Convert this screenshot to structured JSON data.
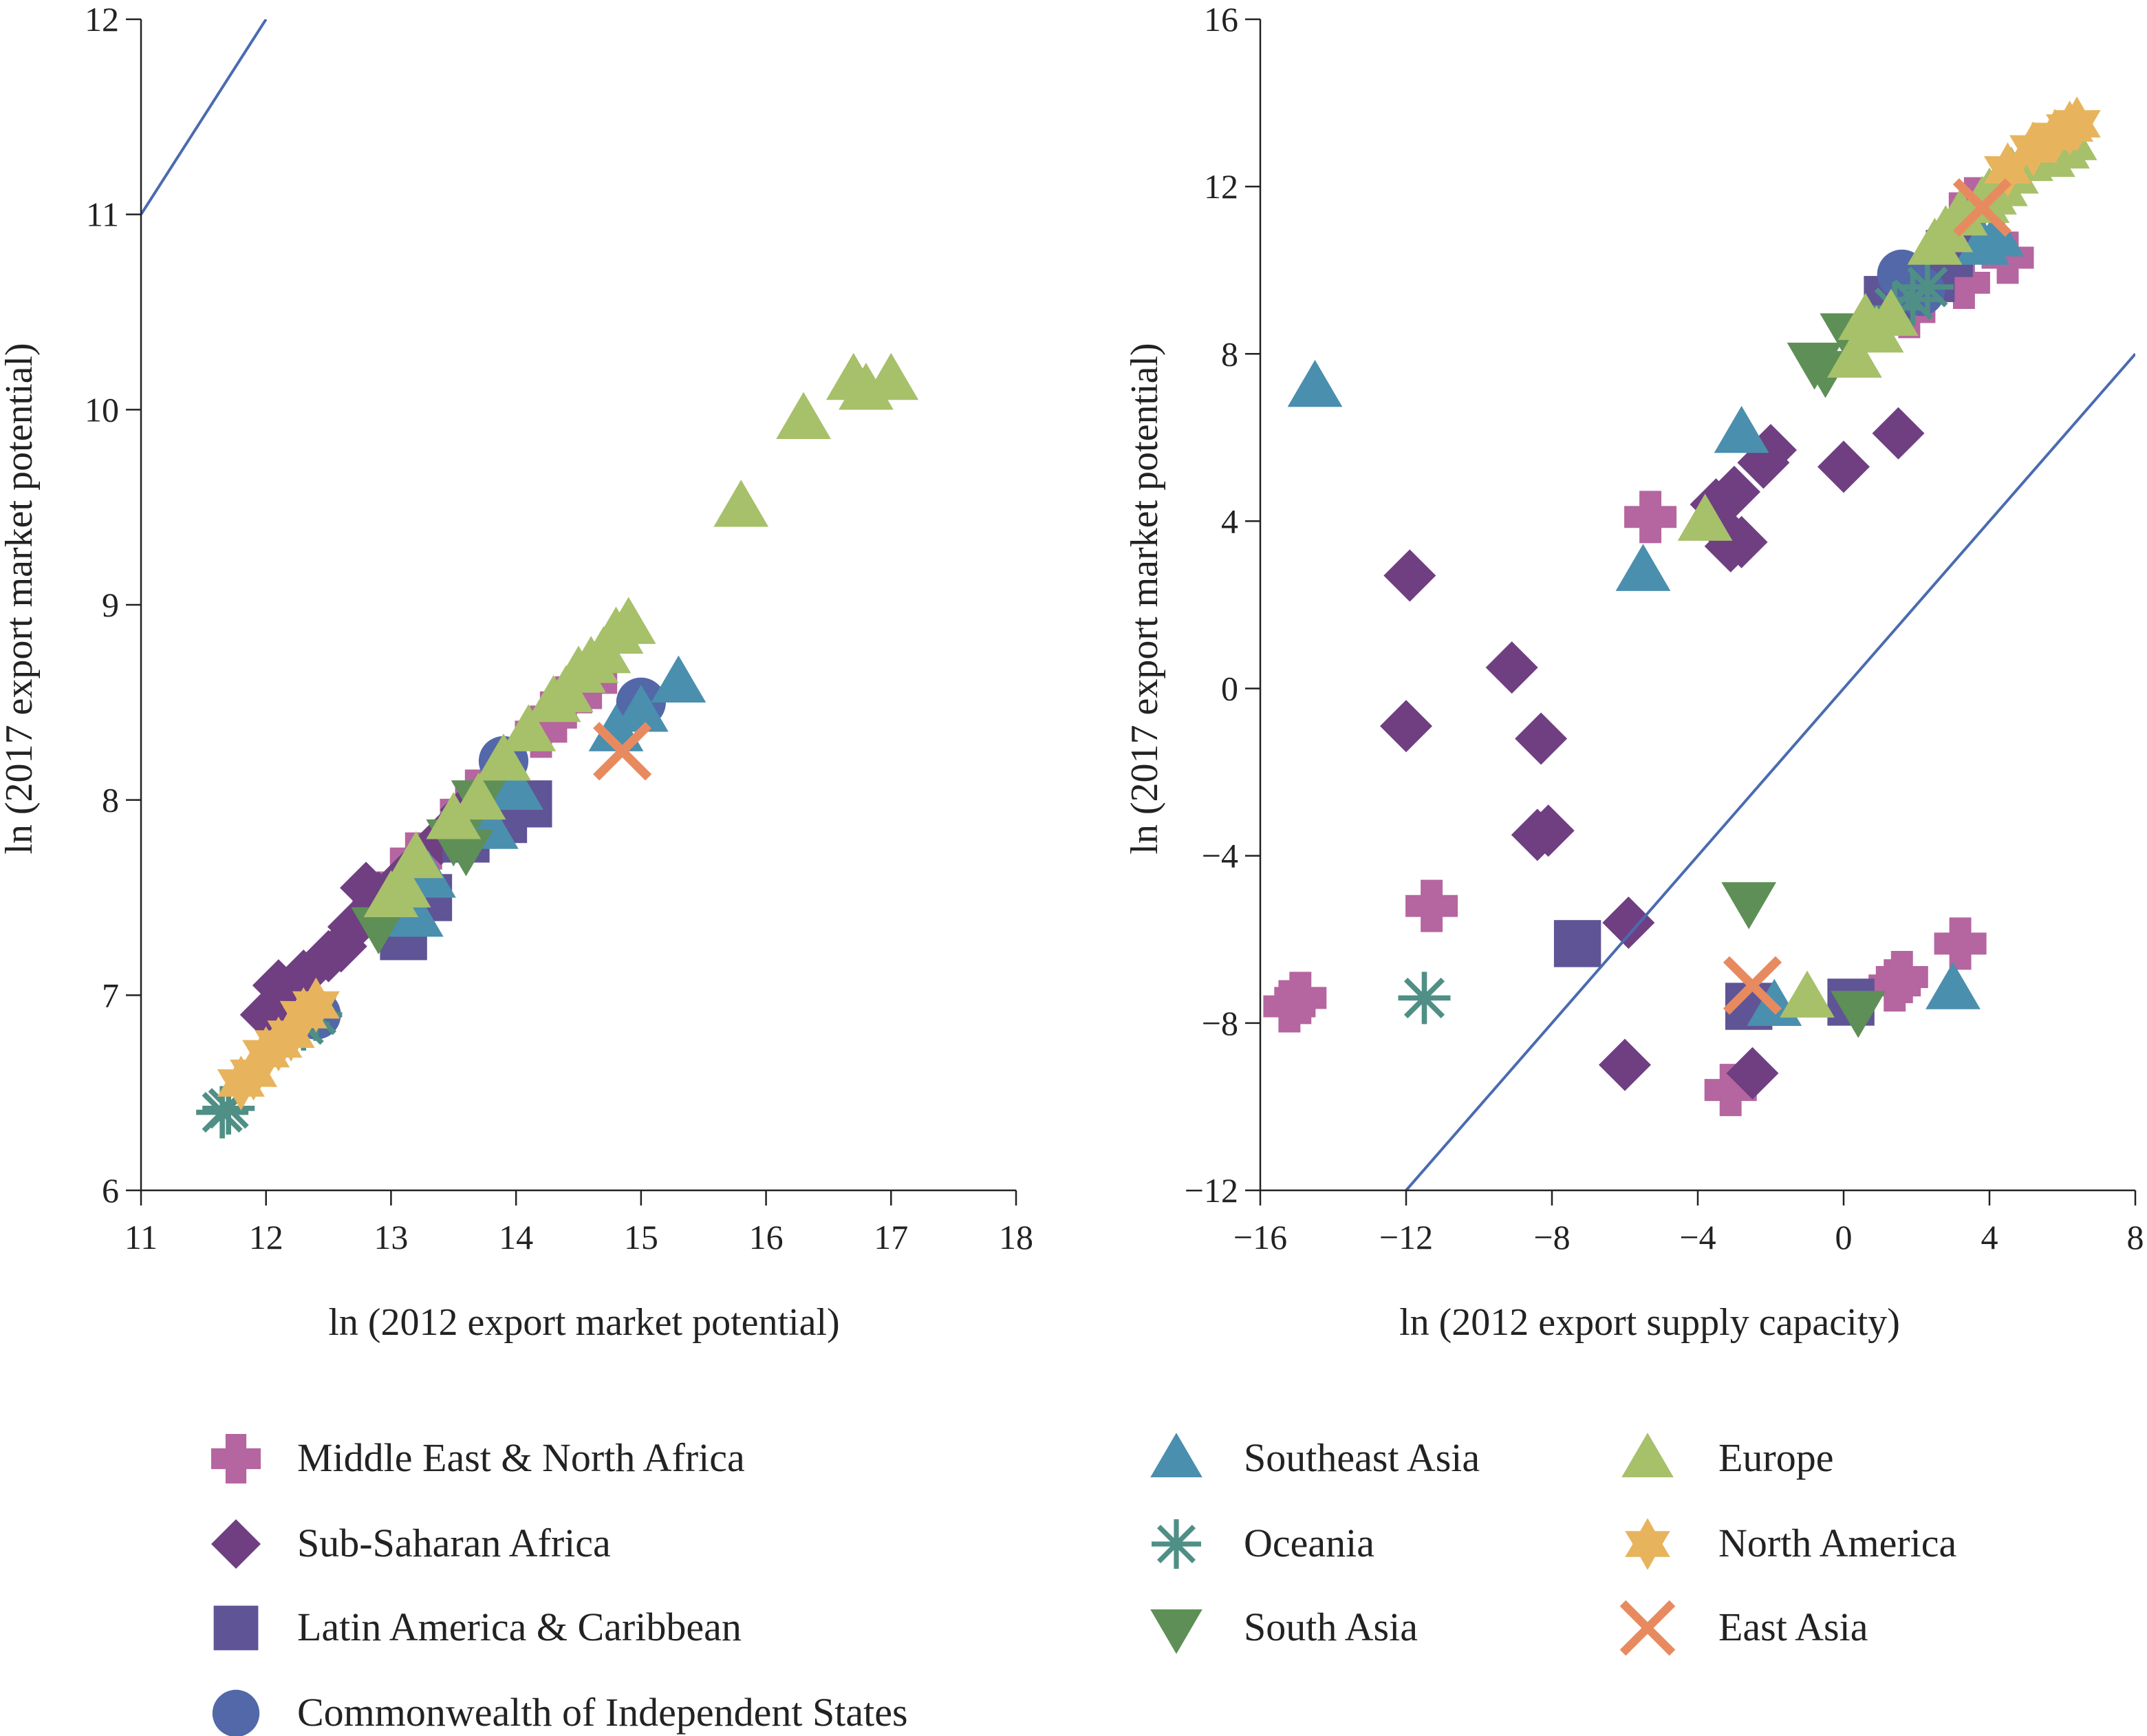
{
  "colors": {
    "mena": "#b5659f",
    "ssa": "#6f3f82",
    "lac": "#5f5496",
    "cis": "#5268a8",
    "sea": "#4a8fae",
    "oceania": "#4f8f86",
    "south_asia": "#5e8f57",
    "europe": "#a7c06a",
    "north_america": "#e7b45d",
    "east_asia": "#e88a60",
    "ref_line": "#4a6bb0",
    "axis": "#222222"
  },
  "legend": {
    "items": [
      {
        "key": "mena",
        "label": "Middle East & North Africa",
        "marker": "plus"
      },
      {
        "key": "ssa",
        "label": "Sub-Saharan Africa",
        "marker": "diamond"
      },
      {
        "key": "lac",
        "label": "Latin America & Caribbean",
        "marker": "square"
      },
      {
        "key": "cis",
        "label": "Commonwealth of Independent States",
        "marker": "circle"
      },
      {
        "key": "sea",
        "label": "Southeast Asia",
        "marker": "triangle-up"
      },
      {
        "key": "oceania",
        "label": "Oceania",
        "marker": "asterisk"
      },
      {
        "key": "south_asia",
        "label": "South Asia",
        "marker": "triangle-down"
      },
      {
        "key": "europe",
        "label": "Europe",
        "marker": "triangle-up"
      },
      {
        "key": "north_america",
        "label": "North America",
        "marker": "star"
      },
      {
        "key": "east_asia",
        "label": "East Asia",
        "marker": "x"
      }
    ]
  },
  "chart_data": [
    {
      "type": "scatter",
      "title": "",
      "xlabel": "ln (2012 export market potential)",
      "ylabel": "ln (2017 export market potential)",
      "xlim": [
        11,
        18
      ],
      "ylim": [
        6,
        12
      ],
      "xticks": [
        11,
        12,
        13,
        14,
        15,
        16,
        17,
        18
      ],
      "yticks": [
        6,
        7,
        8,
        9,
        10,
        11,
        12
      ],
      "reference_line": [
        [
          11,
          11
        ],
        [
          12,
          12
        ]
      ],
      "series": [
        {
          "key": "mena",
          "name": "Middle East & North Africa",
          "x": [
            13.8,
            14.2,
            14.4,
            13.6,
            12.9,
            13.2,
            14.6
          ],
          "y": [
            8.1,
            8.35,
            8.5,
            7.95,
            7.5,
            7.7,
            8.6
          ]
        },
        {
          "key": "ssa",
          "name": "Sub-Saharan Africa",
          "x": [
            12.0,
            12.1,
            12.3,
            12.5,
            12.7,
            12.9,
            13.1,
            13.4,
            12.2,
            12.8,
            13.6,
            12.6
          ],
          "y": [
            6.9,
            7.05,
            7.1,
            7.2,
            7.35,
            7.5,
            7.6,
            7.8,
            6.95,
            7.55,
            7.95,
            7.25
          ]
        },
        {
          "key": "lac",
          "name": "Latin America & Caribbean",
          "x": [
            13.1,
            13.3,
            13.6,
            14.1,
            13.9
          ],
          "y": [
            7.3,
            7.5,
            7.8,
            7.98,
            7.9
          ]
        },
        {
          "key": "cis",
          "name": "Commonwealth of Independent States",
          "x": [
            13.9,
            15.0,
            12.4
          ],
          "y": [
            8.2,
            8.5,
            6.9
          ]
        },
        {
          "key": "sea",
          "name": "Southeast Asia",
          "x": [
            15.3,
            14.8,
            13.3,
            13.8,
            14.0,
            13.7,
            15.0,
            13.2
          ],
          "y": [
            8.6,
            8.35,
            7.6,
            7.85,
            8.05,
            7.9,
            8.45,
            7.4
          ]
        },
        {
          "key": "oceania",
          "name": "Oceania",
          "x": [
            11.7,
            12.4,
            12.3,
            11.65
          ],
          "y": [
            6.42,
            6.9,
            6.85,
            6.4
          ]
        },
        {
          "key": "south_asia",
          "name": "South Asia",
          "x": [
            13.5,
            12.9,
            13.6,
            13.7
          ],
          "y": [
            7.8,
            7.35,
            7.75,
            8.0
          ]
        },
        {
          "key": "europe",
          "name": "Europe",
          "x": [
            17.0,
            16.8,
            16.7,
            16.3,
            15.8,
            14.9,
            14.8,
            14.7,
            14.5,
            14.3,
            14.1,
            13.9,
            13.7,
            13.5,
            13.2,
            13.0,
            13.1,
            14.6,
            14.4
          ],
          "y": [
            10.15,
            10.1,
            10.15,
            9.95,
            9.5,
            8.9,
            8.85,
            8.75,
            8.65,
            8.5,
            8.35,
            8.2,
            8.0,
            7.9,
            7.7,
            7.5,
            7.55,
            8.7,
            8.55
          ]
        },
        {
          "key": "north_america",
          "name": "North America",
          "x": [
            11.8,
            12.0,
            12.2,
            12.4,
            11.9,
            12.1,
            12.3
          ],
          "y": [
            6.55,
            6.7,
            6.8,
            6.95,
            6.6,
            6.75,
            6.9
          ]
        },
        {
          "key": "east_asia",
          "name": "East Asia",
          "x": [
            14.85
          ],
          "y": [
            8.25
          ]
        }
      ]
    },
    {
      "type": "scatter",
      "title": "",
      "xlabel": "ln (2012 export supply capacity)",
      "ylabel": "ln (2017 export market potential)",
      "xlim": [
        -16,
        8
      ],
      "ylim": [
        -12,
        16
      ],
      "xticks": [
        -16,
        -12,
        -8,
        -4,
        0,
        4,
        8
      ],
      "yticks": [
        -12,
        -8,
        -4,
        0,
        4,
        8,
        12,
        16
      ],
      "reference_line": [
        [
          -12,
          -12
        ],
        [
          8,
          8
        ]
      ],
      "series": [
        {
          "key": "mena",
          "name": "Middle East & North Africa",
          "x": [
            -15.2,
            -14.9,
            -11.3,
            -5.3,
            -3.1,
            1.4,
            1.6,
            3.2,
            3.3,
            3.6,
            4.5,
            1.8
          ],
          "y": [
            -7.6,
            -7.4,
            -5.2,
            4.1,
            -9.6,
            -7.1,
            -6.9,
            -6.1,
            9.7,
            11.6,
            10.3,
            9.0
          ]
        },
        {
          "key": "ssa",
          "name": "Sub-Saharan Africa",
          "x": [
            -11.9,
            -12.0,
            -9.1,
            -8.3,
            -8.4,
            -8.1,
            -5.9,
            -6.0,
            -3.5,
            -3.3,
            -3.0,
            -2.8,
            -3.1,
            -2.5,
            -2.2,
            0.0,
            1.5,
            -2.0
          ],
          "y": [
            2.7,
            -0.9,
            0.5,
            -1.2,
            -3.5,
            -3.4,
            -5.6,
            -9.0,
            4.4,
            3.8,
            4.7,
            3.5,
            3.4,
            -9.2,
            5.4,
            5.3,
            6.1,
            5.7
          ]
        },
        {
          "key": "lac",
          "name": "Latin America & Caribbean",
          "x": [
            -7.3,
            -2.6,
            0.2,
            1.2,
            1.7,
            2.4,
            2.9
          ],
          "y": [
            -6.1,
            -7.6,
            -7.5,
            9.3,
            9.5,
            9.8,
            10.4
          ]
        },
        {
          "key": "cis",
          "name": "Commonwealth of Independent States",
          "x": [
            1.6,
            2.1
          ],
          "y": [
            9.9,
            9.5
          ]
        },
        {
          "key": "sea",
          "name": "Southeast Asia",
          "x": [
            -14.5,
            -2.8,
            -5.5,
            3.0,
            3.8,
            4.2,
            -1.9
          ],
          "y": [
            7.2,
            6.1,
            2.8,
            -7.2,
            10.6,
            10.8,
            -7.6
          ]
        },
        {
          "key": "oceania",
          "name": "Oceania",
          "x": [
            -11.5,
            1.4,
            1.9,
            2.3
          ],
          "y": [
            -7.4,
            9.1,
            9.3,
            9.6
          ]
        },
        {
          "key": "south_asia",
          "name": "South Asia",
          "x": [
            -2.6,
            -0.8,
            -0.5,
            0.4,
            0.1
          ],
          "y": [
            -5.1,
            7.8,
            7.6,
            -7.7,
            8.5
          ]
        },
        {
          "key": "europe",
          "name": "Europe",
          "x": [
            -3.8,
            -1.0,
            0.3,
            0.6,
            0.9,
            1.3,
            2.5,
            3.2,
            3.8,
            4.3,
            4.6,
            5.0,
            5.4,
            5.6,
            5.8,
            6.0,
            6.2,
            2.8,
            4.0
          ],
          "y": [
            4.0,
            -7.4,
            7.9,
            8.8,
            8.5,
            8.9,
            10.6,
            11.3,
            11.6,
            12.0,
            12.3,
            12.6,
            12.8,
            12.7,
            13.0,
            12.9,
            13.1,
            10.9,
            11.8
          ]
        },
        {
          "key": "north_america",
          "name": "North America",
          "x": [
            4.5,
            5.2,
            5.8,
            6.2,
            6.4
          ],
          "y": [
            12.4,
            12.9,
            13.2,
            13.4,
            13.5
          ]
        },
        {
          "key": "east_asia",
          "name": "East Asia",
          "x": [
            -2.5,
            3.8
          ],
          "y": [
            -7.1,
            11.5
          ]
        }
      ]
    }
  ]
}
